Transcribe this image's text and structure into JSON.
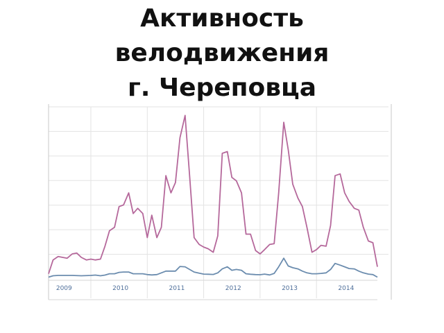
{
  "slide": {
    "title_lines": [
      "Активность",
      "велодвижения",
      "г. Череповца"
    ]
  },
  "chart_data": {
    "type": "line",
    "title": "Активность велодвижения г. Череповца",
    "xlabel": "",
    "ylabel": "",
    "x_tick_labels": [
      "2009",
      "2010",
      "2011",
      "2012",
      "2013",
      "2014"
    ],
    "x_range": [
      2008.75,
      2014.58
    ],
    "y_range": [
      0,
      100
    ],
    "grid": true,
    "legend": "none",
    "colors": {
      "pink": "#b5689b",
      "blue": "#6b8cae",
      "tick_text": "#4f6f9a",
      "grid": "#e3e3e3"
    },
    "series": [
      {
        "color": "pink",
        "points": [
          [
            2008.75,
            3
          ],
          [
            2008.83,
            11
          ],
          [
            2008.92,
            13
          ],
          [
            2009.0,
            12.5
          ],
          [
            2009.08,
            12
          ],
          [
            2009.17,
            14.5
          ],
          [
            2009.25,
            15
          ],
          [
            2009.33,
            12.5
          ],
          [
            2009.42,
            11
          ],
          [
            2009.5,
            11.5
          ],
          [
            2009.58,
            11
          ],
          [
            2009.67,
            11.5
          ],
          [
            2009.75,
            19
          ],
          [
            2009.83,
            28
          ],
          [
            2009.92,
            30
          ],
          [
            2010.0,
            42
          ],
          [
            2010.08,
            43
          ],
          [
            2010.17,
            50
          ],
          [
            2010.25,
            38
          ],
          [
            2010.33,
            41
          ],
          [
            2010.42,
            38
          ],
          [
            2010.5,
            24
          ],
          [
            2010.58,
            37
          ],
          [
            2010.67,
            24
          ],
          [
            2010.75,
            30
          ],
          [
            2010.83,
            60
          ],
          [
            2010.92,
            50
          ],
          [
            2011.0,
            56
          ],
          [
            2011.08,
            82
          ],
          [
            2011.17,
            95
          ],
          [
            2011.25,
            60
          ],
          [
            2011.33,
            24
          ],
          [
            2011.42,
            20
          ],
          [
            2011.5,
            18.5
          ],
          [
            2011.58,
            17.5
          ],
          [
            2011.67,
            15.5
          ],
          [
            2011.75,
            25
          ],
          [
            2011.83,
            73
          ],
          [
            2011.92,
            74
          ],
          [
            2012.0,
            59
          ],
          [
            2012.08,
            57
          ],
          [
            2012.17,
            50
          ],
          [
            2012.25,
            26
          ],
          [
            2012.33,
            26
          ],
          [
            2012.42,
            16.5
          ],
          [
            2012.5,
            14.5
          ],
          [
            2012.58,
            17
          ],
          [
            2012.67,
            20
          ],
          [
            2012.75,
            20.5
          ],
          [
            2012.83,
            50
          ],
          [
            2012.92,
            91
          ],
          [
            2013.0,
            75
          ],
          [
            2013.08,
            55
          ],
          [
            2013.17,
            47
          ],
          [
            2013.25,
            42
          ],
          [
            2013.33,
            30
          ],
          [
            2013.42,
            15.5
          ],
          [
            2013.5,
            17
          ],
          [
            2013.58,
            19.5
          ],
          [
            2013.67,
            19
          ],
          [
            2013.75,
            31
          ],
          [
            2013.83,
            60
          ],
          [
            2013.92,
            61
          ],
          [
            2014.0,
            50
          ],
          [
            2014.08,
            45
          ],
          [
            2014.17,
            41
          ],
          [
            2014.25,
            40
          ],
          [
            2014.33,
            30
          ],
          [
            2014.42,
            22
          ],
          [
            2014.5,
            21
          ],
          [
            2014.58,
            7
          ]
        ]
      },
      {
        "color": "blue",
        "points": [
          [
            2008.75,
            1
          ],
          [
            2008.83,
            1.8
          ],
          [
            2008.92,
            2
          ],
          [
            2009.0,
            2
          ],
          [
            2009.17,
            2
          ],
          [
            2009.33,
            1.8
          ],
          [
            2009.5,
            2
          ],
          [
            2009.58,
            2.2
          ],
          [
            2009.67,
            1.8
          ],
          [
            2009.75,
            2.2
          ],
          [
            2009.83,
            3
          ],
          [
            2009.92,
            3
          ],
          [
            2010.0,
            3.8
          ],
          [
            2010.08,
            4
          ],
          [
            2010.17,
            4
          ],
          [
            2010.25,
            3
          ],
          [
            2010.42,
            3
          ],
          [
            2010.5,
            2.5
          ],
          [
            2010.58,
            2.3
          ],
          [
            2010.67,
            2.5
          ],
          [
            2010.75,
            3.5
          ],
          [
            2010.83,
            4.5
          ],
          [
            2010.92,
            4.5
          ],
          [
            2011.0,
            4.5
          ],
          [
            2011.08,
            7.2
          ],
          [
            2011.17,
            7
          ],
          [
            2011.25,
            5.5
          ],
          [
            2011.33,
            4
          ],
          [
            2011.42,
            3.3
          ],
          [
            2011.5,
            2.8
          ],
          [
            2011.58,
            2.7
          ],
          [
            2011.67,
            2.6
          ],
          [
            2011.75,
            3.5
          ],
          [
            2011.83,
            5.8
          ],
          [
            2011.92,
            7
          ],
          [
            2012.0,
            5
          ],
          [
            2012.08,
            5.5
          ],
          [
            2012.17,
            5
          ],
          [
            2012.25,
            3
          ],
          [
            2012.33,
            2.7
          ],
          [
            2012.42,
            2.5
          ],
          [
            2012.5,
            2.4
          ],
          [
            2012.58,
            2.8
          ],
          [
            2012.67,
            2.3
          ],
          [
            2012.75,
            3.2
          ],
          [
            2012.83,
            7
          ],
          [
            2012.92,
            12
          ],
          [
            2013.0,
            7.5
          ],
          [
            2013.08,
            6.5
          ],
          [
            2013.17,
            5.8
          ],
          [
            2013.25,
            4.5
          ],
          [
            2013.33,
            3.5
          ],
          [
            2013.42,
            3
          ],
          [
            2013.5,
            3
          ],
          [
            2013.58,
            3.2
          ],
          [
            2013.67,
            3.5
          ],
          [
            2013.75,
            5.5
          ],
          [
            2013.83,
            9
          ],
          [
            2013.92,
            8
          ],
          [
            2014.0,
            7
          ],
          [
            2014.08,
            6
          ],
          [
            2014.17,
            5.8
          ],
          [
            2014.25,
            4.5
          ],
          [
            2014.33,
            3.5
          ],
          [
            2014.42,
            2.8
          ],
          [
            2014.5,
            2.5
          ],
          [
            2014.58,
            1
          ]
        ]
      }
    ]
  }
}
